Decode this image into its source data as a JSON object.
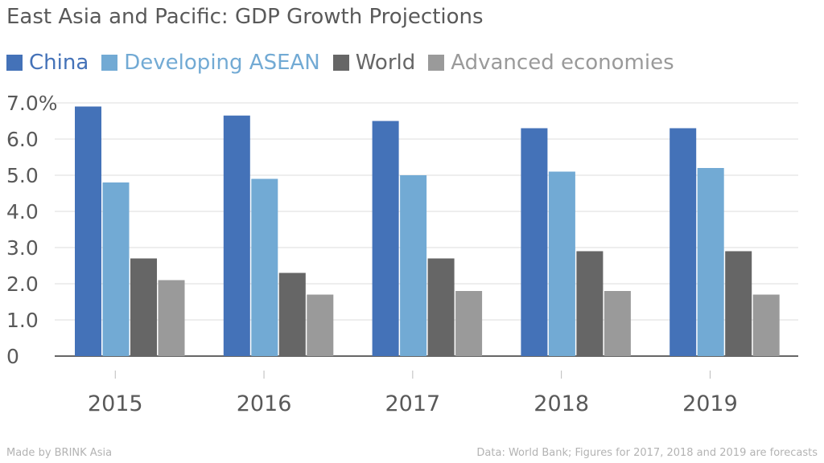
{
  "chart_data": {
    "type": "bar",
    "title": "East Asia and Pacific: GDP Growth Projections",
    "categories": [
      "2015",
      "2016",
      "2017",
      "2018",
      "2019"
    ],
    "series": [
      {
        "name": "China",
        "values": [
          6.9,
          6.65,
          6.5,
          6.3,
          6.3
        ],
        "color": "#4472b8"
      },
      {
        "name": "Developing ASEAN",
        "values": [
          4.8,
          4.9,
          5.0,
          5.1,
          5.2
        ],
        "color": "#72aad4"
      },
      {
        "name": "World",
        "values": [
          2.7,
          2.3,
          2.7,
          2.9,
          2.9
        ],
        "color": "#666666"
      },
      {
        "name": "Advanced economies",
        "values": [
          2.1,
          1.7,
          1.8,
          1.8,
          1.7
        ],
        "color": "#9a9a9a"
      }
    ],
    "ylim": [
      0,
      7
    ],
    "y_ticks": [
      "0",
      "1.0",
      "2.0",
      "3.0",
      "4.0",
      "5.0",
      "6.0",
      "7.0%"
    ],
    "grid": true,
    "legend_position": "top-left"
  },
  "footer": {
    "credit": "Made by BRINK Asia",
    "source": "Data: World Bank; Figures for 2017, 2018 and 2019 are forecasts"
  }
}
